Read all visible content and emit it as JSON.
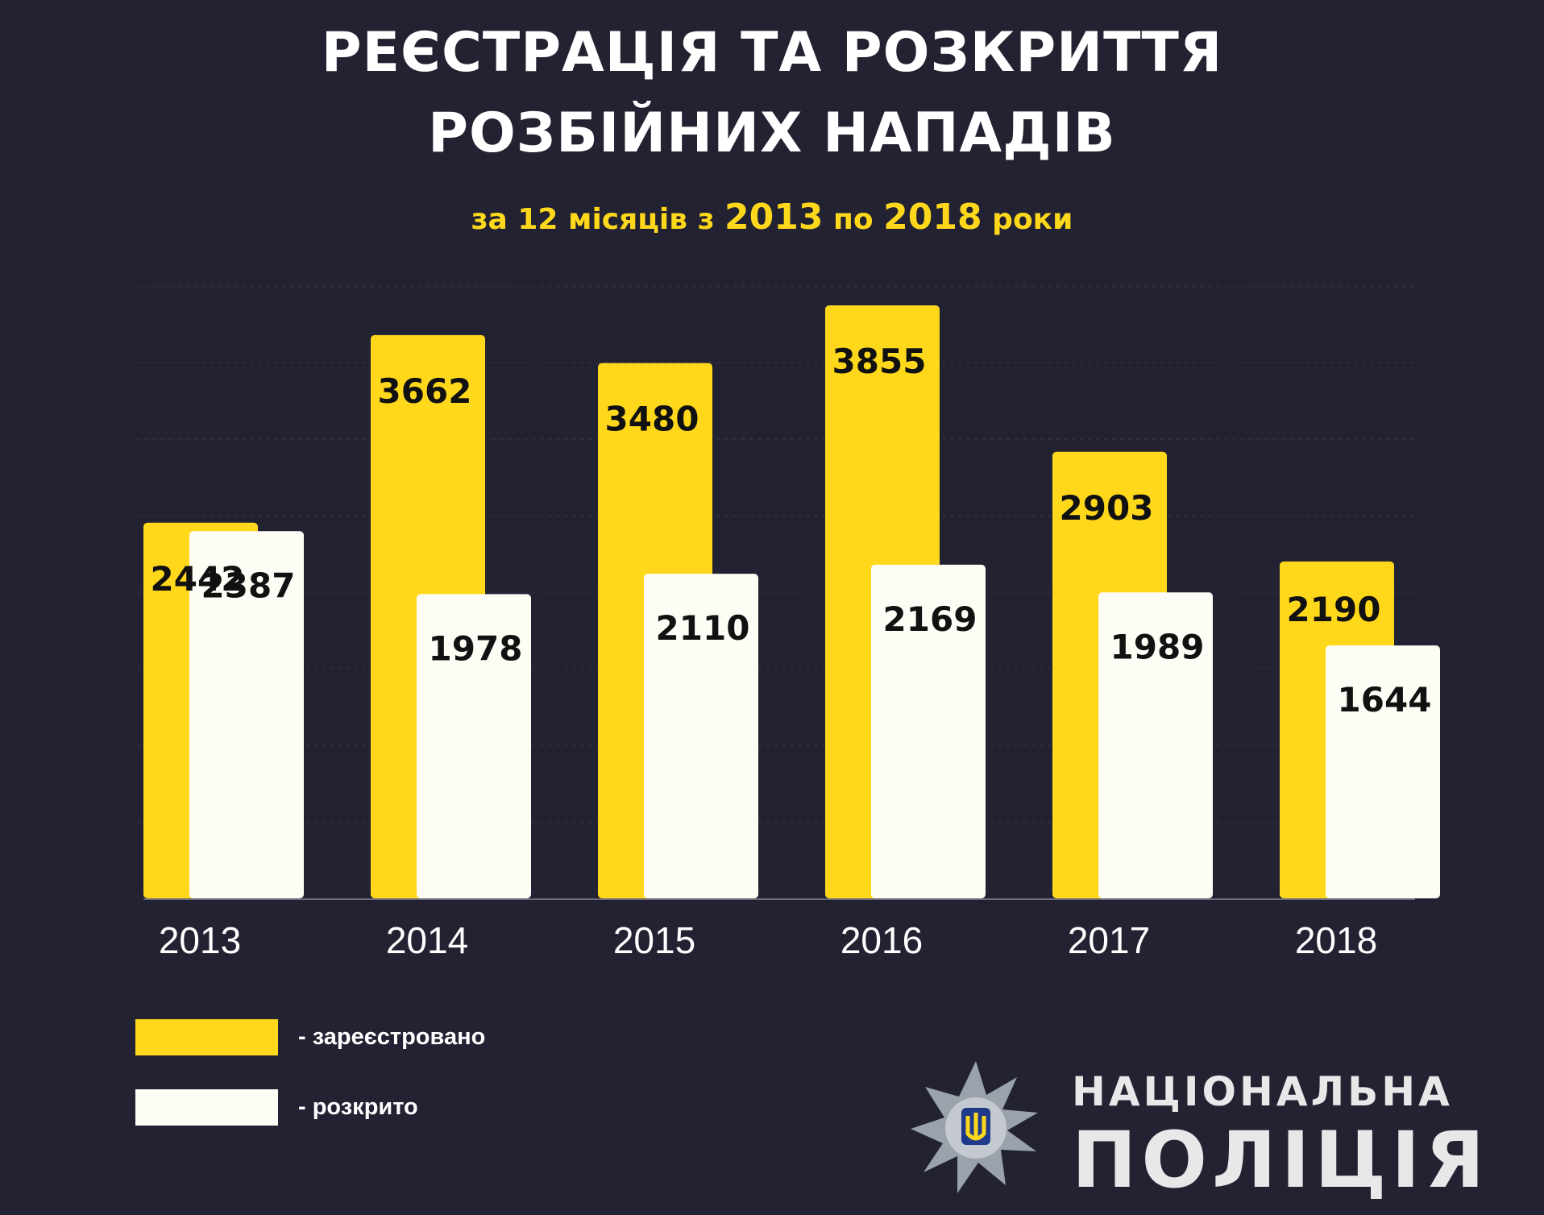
{
  "header": {
    "title_line1": "РЕЄСТРАЦІЯ ТА РОЗКРИТТЯ",
    "title_line2": "РОЗБІЙНИХ НАПАДІВ",
    "subtitle_pre": "за 12 місяців з ",
    "subtitle_year_from": "2013",
    "subtitle_mid": " по ",
    "subtitle_year_to": "2018",
    "subtitle_post": " роки"
  },
  "chart_data": {
    "type": "bar",
    "categories": [
      "2013",
      "2014",
      "2015",
      "2016",
      "2017",
      "2018"
    ],
    "series": [
      {
        "name": "- зареєстровано",
        "values": [
          2442,
          3662,
          3480,
          3855,
          2903,
          2190
        ],
        "color": "#ffd81c"
      },
      {
        "name": "- розкрито",
        "values": [
          2387,
          1978,
          2110,
          2169,
          1989,
          1644
        ],
        "color": "#fdfdf6"
      }
    ],
    "grid": true
  },
  "legend": {
    "registered_label": "- зареєстровано",
    "registered_color": "#ffd81c",
    "solved_label": "- розкрито",
    "solved_color": "#fdfdf6"
  },
  "logo": {
    "line1": "НАЦІОНАЛЬНА",
    "line2": "ПОЛІЦІЯ",
    "icon": "police-star-emblem-icon"
  }
}
